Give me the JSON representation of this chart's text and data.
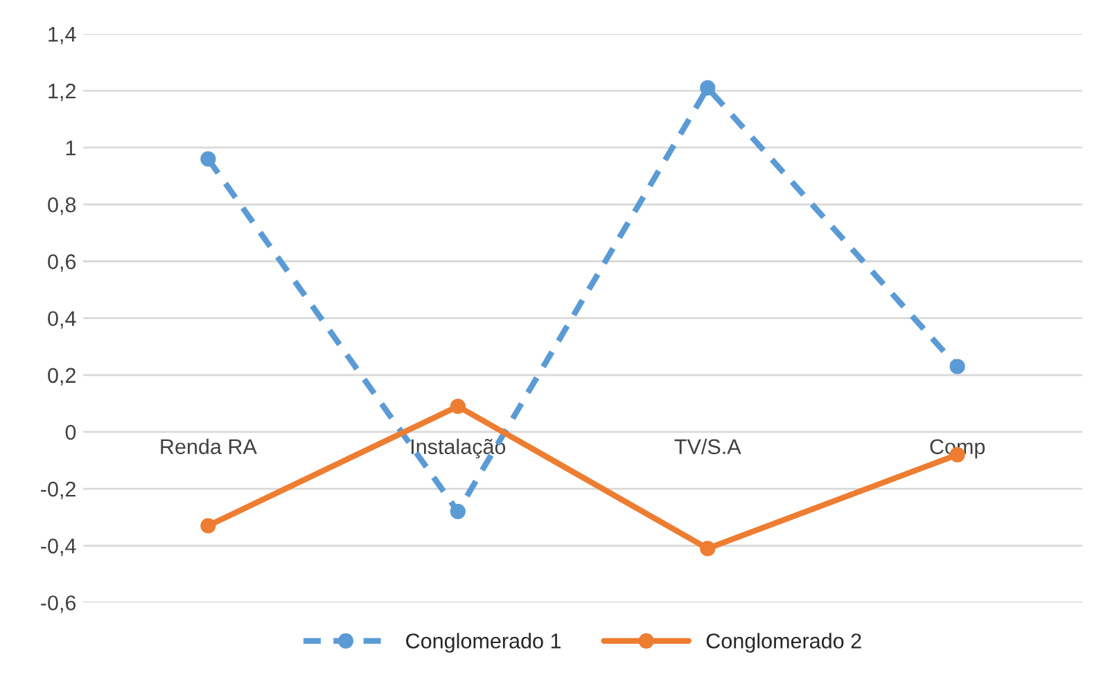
{
  "chart_data": {
    "type": "line",
    "categories": [
      "Renda RA",
      "Instalação",
      "TV/S.A",
      "Comp"
    ],
    "series": [
      {
        "name": "Conglomerado 1",
        "color": "#5b9bd5",
        "line_style": "dashed",
        "marker": "circle",
        "values": [
          0.96,
          -0.28,
          1.21,
          0.23
        ]
      },
      {
        "name": "Conglomerado 2",
        "color": "#ed7d31",
        "line_style": "solid",
        "marker": "circle",
        "values": [
          -0.33,
          0.09,
          -0.41,
          -0.08
        ]
      }
    ],
    "ylim": [
      -0.6,
      1.4
    ],
    "yticks": [
      {
        "value": 1.4,
        "label": "1,4"
      },
      {
        "value": 1.2,
        "label": "1,2"
      },
      {
        "value": 1,
        "label": "1"
      },
      {
        "value": 0.8,
        "label": "0,8"
      },
      {
        "value": 0.6,
        "label": "0,6"
      },
      {
        "value": 0.4,
        "label": "0,4"
      },
      {
        "value": 0.2,
        "label": "0,2"
      },
      {
        "value": 0,
        "label": "0"
      },
      {
        "value": -0.2,
        "label": "-0,2"
      },
      {
        "value": -0.4,
        "label": "-0,4"
      },
      {
        "value": -0.6,
        "label": "-0,6"
      }
    ],
    "grid": "y",
    "legend": "bottom"
  }
}
